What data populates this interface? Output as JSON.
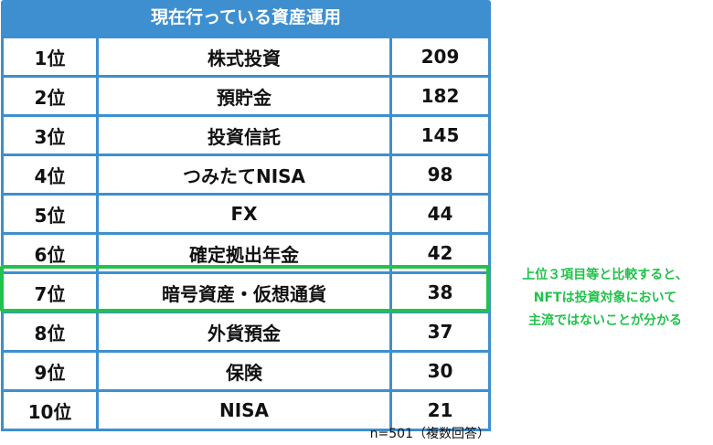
{
  "chart_data": {
    "type": "table",
    "title": "現在行っている資産運用",
    "rows": [
      {
        "rank": "1位",
        "item": "株式投資",
        "count": "209"
      },
      {
        "rank": "2位",
        "item": "預貯金",
        "count": "182"
      },
      {
        "rank": "3位",
        "item": "投資信託",
        "count": "145"
      },
      {
        "rank": "4位",
        "item": "つみたてNISA",
        "count": "98"
      },
      {
        "rank": "5位",
        "item": "FX",
        "count": "44"
      },
      {
        "rank": "6位",
        "item": "確定拠出年金",
        "count": "42"
      },
      {
        "rank": "7位",
        "item": "暗号資産・仮想通貨",
        "count": "38"
      },
      {
        "rank": "8位",
        "item": "外貨預金",
        "count": "37"
      },
      {
        "rank": "9位",
        "item": "保険",
        "count": "30"
      },
      {
        "rank": "10位",
        "item": "NISA",
        "count": "21"
      }
    ],
    "highlighted_rank": "7位",
    "annotation": [
      "上位３項目等と比較すると、",
      "NFTは投資対象において",
      "主流ではないことが分かる"
    ],
    "footnote": "n=501（複数回答）"
  },
  "colors": {
    "table_border": "#3d8fd0",
    "title_bg": "#3d8fd0",
    "highlight": "#21c24b"
  }
}
